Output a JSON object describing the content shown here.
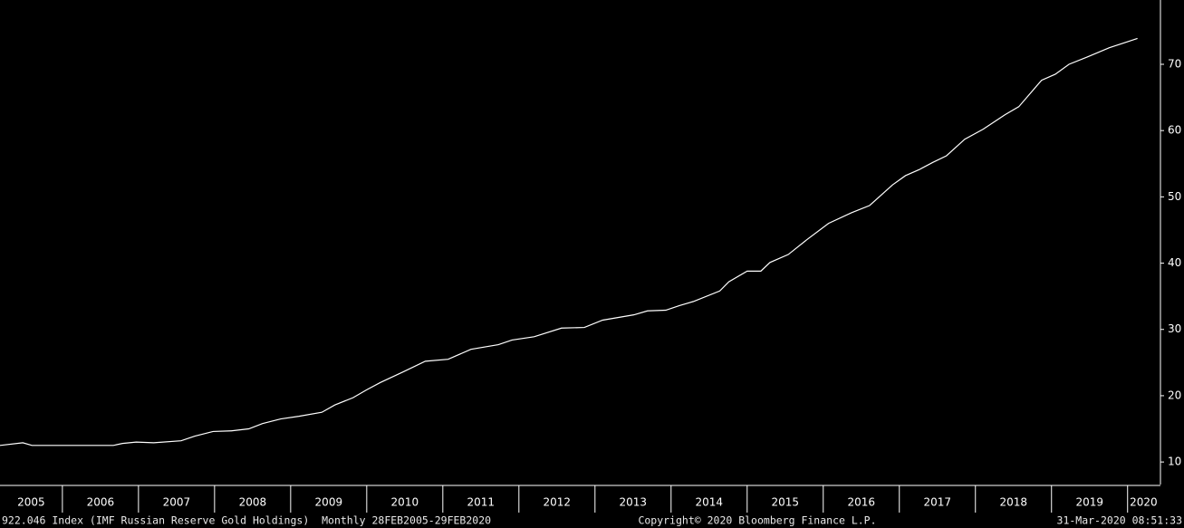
{
  "chart_data": {
    "type": "line",
    "x": [
      2005.18,
      2005.48,
      2005.6,
      2006.67,
      2006.79,
      2006.97,
      2007.2,
      2007.56,
      2007.74,
      2007.98,
      2008.22,
      2008.45,
      2008.63,
      2008.87,
      2009.11,
      2009.41,
      2009.58,
      2009.82,
      2010.0,
      2010.18,
      2010.48,
      2010.77,
      2011.07,
      2011.37,
      2011.73,
      2011.91,
      2012.2,
      2012.56,
      2012.86,
      2013.1,
      2013.51,
      2013.69,
      2013.93,
      2014.11,
      2014.29,
      2014.64,
      2014.76,
      2015.0,
      2015.18,
      2015.3,
      2015.54,
      2015.78,
      2016.07,
      2016.37,
      2016.61,
      2016.91,
      2017.08,
      2017.26,
      2017.44,
      2017.62,
      2017.86,
      2018.1,
      2018.39,
      2018.57,
      2018.87,
      2019.05,
      2019.23,
      2019.47,
      2019.76,
      2020.0,
      2020.13
    ],
    "values": [
      12.5,
      12.9,
      12.5,
      12.5,
      12.8,
      13.0,
      12.9,
      13.2,
      13.9,
      14.6,
      14.7,
      15.0,
      15.8,
      16.5,
      16.9,
      17.5,
      18.6,
      19.7,
      20.9,
      22.0,
      23.6,
      25.2,
      25.5,
      27.0,
      27.7,
      28.4,
      28.9,
      30.2,
      30.3,
      31.4,
      32.2,
      32.8,
      32.9,
      33.6,
      34.2,
      35.8,
      37.2,
      38.8,
      38.8,
      40.1,
      41.3,
      43.5,
      46.0,
      47.6,
      48.7,
      51.8,
      53.2,
      54.1,
      55.2,
      56.2,
      58.7,
      60.2,
      62.4,
      63.6,
      67.6,
      68.5,
      70.0,
      71.1,
      72.5,
      73.4,
      73.9
    ],
    "color": "#ffffff",
    "xlim": [
      2005.18,
      2020.42
    ],
    "xticks": [
      {
        "value": 2005,
        "label": "2005"
      },
      {
        "value": 2006,
        "label": "2006"
      },
      {
        "value": 2007,
        "label": "2007"
      },
      {
        "value": 2008,
        "label": "2008"
      },
      {
        "value": 2009,
        "label": "2009"
      },
      {
        "value": 2010,
        "label": "2010"
      },
      {
        "value": 2011,
        "label": "2011"
      },
      {
        "value": 2012,
        "label": "2012"
      },
      {
        "value": 2013,
        "label": "2013"
      },
      {
        "value": 2014,
        "label": "2014"
      },
      {
        "value": 2015,
        "label": "2015"
      },
      {
        "value": 2016,
        "label": "2016"
      },
      {
        "value": 2017,
        "label": "2017"
      },
      {
        "value": 2018,
        "label": "2018"
      },
      {
        "value": 2019,
        "label": "2019"
      },
      {
        "value": 2020,
        "label": "2020"
      }
    ],
    "ylim": [
      6.6,
      79.7
    ],
    "yticks": [
      10,
      20,
      30,
      40,
      50,
      60,
      70
    ],
    "footer_left": "922.046 Index (IMF Russian Reserve Gold Holdings)  Monthly 28FEB2005-29FEB2020",
    "footer_center": "Copyright© 2020 Bloomberg Finance L.P.",
    "footer_right": "31-Mar-2020 08:51:33"
  }
}
